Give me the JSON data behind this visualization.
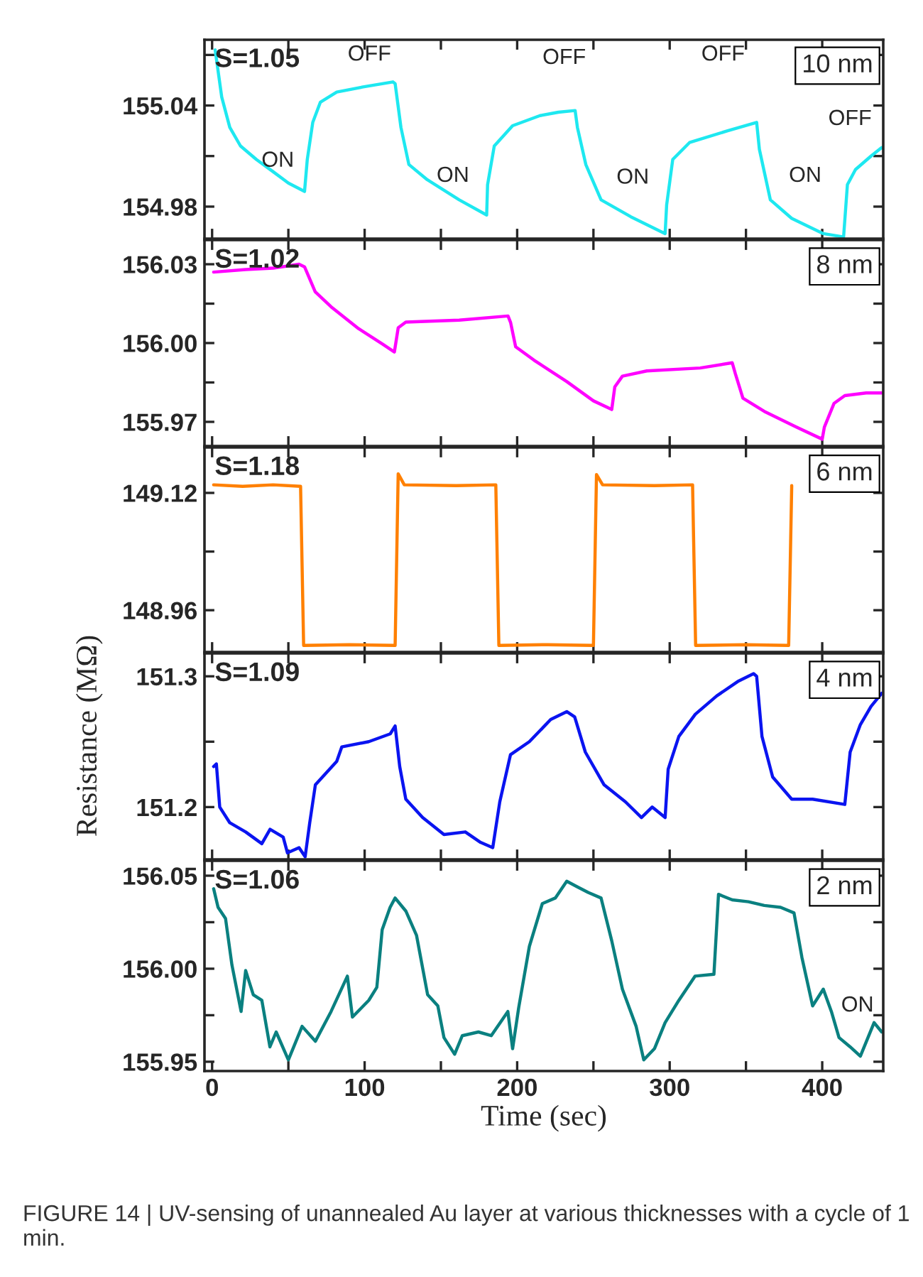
{
  "chart_data": [
    {
      "type": "line",
      "xlim": [
        -5,
        440
      ],
      "xticks": [
        0,
        {
          "value": 50,
          "label": null
        },
        {
          "value": 100,
          "label": null
        },
        {
          "value": 150,
          "label": null
        },
        {
          "value": 200,
          "label": null
        },
        {
          "value": 250,
          "label": null
        },
        {
          "value": 300,
          "label": null
        },
        {
          "value": 350,
          "label": null
        },
        {
          "value": 400,
          "label": null
        }
      ],
      "tick_labels": "y",
      "ylim": [
        154.961,
        155.079
      ],
      "yticks": [
        {
          "value": 154.98,
          "label": "154.98"
        },
        {
          "value": 155.01,
          "label": null
        },
        {
          "value": 155.04,
          "label": "155.04"
        },
        {
          "value": 155.07,
          "label": null
        }
      ],
      "series": [
        {
          "color": "#1ee8f0",
          "x": [
            2,
            6.3,
            11.6,
            18.6,
            29,
            39.6,
            50,
            60.6,
            62.4,
            66,
            71,
            81.7,
            99,
            118.5,
            120,
            123.8,
            129,
            141,
            162,
            180,
            180.6,
            185,
            197,
            215,
            227,
            238,
            239.5,
            245,
            255,
            274.5,
            297,
            298,
            302,
            313,
            338,
            357,
            358.8,
            366,
            380,
            400.7,
            414,
            416.5,
            421.8,
            432,
            439
          ],
          "values": [
            155.073,
            155.045,
            155.027,
            155.016,
            155.008,
            155.001,
            154.994,
            154.989,
            155.008,
            155.03,
            155.042,
            155.048,
            155.051,
            155.054,
            155.053,
            155.027,
            155.005,
            154.996,
            154.984,
            154.975,
            154.993,
            155.016,
            155.028,
            155.034,
            155.036,
            155.037,
            155.027,
            155.005,
            154.984,
            154.974,
            154.964,
            154.981,
            155.008,
            155.018,
            155.025,
            155.03,
            155.014,
            154.984,
            154.973,
            154.964,
            154.962,
            154.993,
            155.002,
            155.01,
            155.015
          ]
        }
      ],
      "annotations": [
        "S=1.05",
        "10 nm",
        "ON",
        "OFF",
        "ON",
        "OFF",
        "ON",
        "OFF",
        "ON",
        "OFF"
      ]
    },
    {
      "type": "line",
      "xlim": [
        -5,
        440
      ],
      "xticks": [
        0,
        {
          "value": 50,
          "label": null
        },
        {
          "value": 100,
          "label": null
        },
        {
          "value": 150,
          "label": null
        },
        {
          "value": 200,
          "label": null
        },
        {
          "value": 250,
          "label": null
        },
        {
          "value": 300,
          "label": null
        },
        {
          "value": 350,
          "label": null
        },
        {
          "value": 400,
          "label": null
        }
      ],
      "tick_labels": "y",
      "ylim": [
        155.9608,
        156.0392
      ],
      "yticks": [
        {
          "value": 155.97,
          "label": "155.97"
        },
        {
          "value": 155.985,
          "label": null
        },
        {
          "value": 156.0,
          "label": "156.00"
        },
        {
          "value": 156.015,
          "label": null
        },
        {
          "value": 156.03,
          "label": "156.03"
        }
      ],
      "series": [
        {
          "color": "#ff00ff",
          "x": [
            1,
            22,
            40,
            57,
            60.6,
            67.6,
            78,
            96,
            111.5,
            119.5,
            122,
            127,
            162,
            194,
            195.7,
            199,
            211,
            232.6,
            250,
            262,
            264,
            269,
            285,
            320,
            341,
            343,
            348,
            362,
            383,
            400,
            401.4,
            407.7,
            414.8,
            428.8,
            439
          ],
          "values": [
            156.027,
            156.028,
            156.0285,
            156.03,
            156.029,
            156.0195,
            156.0138,
            156.0055,
            155.9997,
            155.9966,
            156.0058,
            156.008,
            156.0087,
            156.0103,
            156.0078,
            155.9986,
            155.9935,
            155.9853,
            155.978,
            155.9747,
            155.9833,
            155.9874,
            155.9894,
            155.9905,
            155.9925,
            155.9884,
            155.979,
            155.974,
            155.968,
            155.9634,
            155.968,
            155.977,
            155.98,
            155.981,
            155.981
          ]
        }
      ],
      "annotations": [
        "S=1.02",
        "8 nm"
      ]
    },
    {
      "type": "line",
      "xlim": [
        -5,
        440
      ],
      "xticks": [
        0,
        {
          "value": 50,
          "label": null
        },
        {
          "value": 100,
          "label": null
        },
        {
          "value": 150,
          "label": null
        },
        {
          "value": 200,
          "label": null
        },
        {
          "value": 250,
          "label": null
        },
        {
          "value": 300,
          "label": null
        },
        {
          "value": 350,
          "label": null
        },
        {
          "value": 400,
          "label": null
        }
      ],
      "tick_labels": "y",
      "ylim": [
        148.903,
        149.182
      ],
      "yticks": [
        {
          "value": 148.96,
          "label": "148.96"
        },
        {
          "value": 149.04,
          "label": null
        },
        {
          "value": 149.12,
          "label": "149.12"
        }
      ],
      "series": [
        {
          "color": "#ff8000",
          "x": [
            1,
            20,
            40,
            58,
            60,
            90,
            120,
            122,
            126,
            160,
            186,
            188,
            220,
            250,
            252,
            256,
            290,
            315,
            317,
            350,
            378,
            380
          ],
          "values": [
            149.131,
            149.129,
            149.131,
            149.129,
            148.912,
            148.913,
            148.912,
            149.146,
            149.131,
            149.13,
            149.131,
            148.912,
            148.913,
            148.912,
            149.145,
            149.131,
            149.13,
            149.131,
            148.912,
            148.913,
            148.912,
            149.13
          ]
        }
      ],
      "annotations": [
        "S=1.18",
        "6 nm"
      ]
    },
    {
      "type": "line",
      "xlim": [
        -5,
        440
      ],
      "xticks": [
        0,
        {
          "value": 50,
          "label": null
        },
        {
          "value": 100,
          "label": null
        },
        {
          "value": 150,
          "label": null
        },
        {
          "value": 200,
          "label": null
        },
        {
          "value": 250,
          "label": null
        },
        {
          "value": 300,
          "label": null
        },
        {
          "value": 350,
          "label": null
        },
        {
          "value": 400,
          "label": null
        }
      ],
      "tick_labels": "y",
      "ylim": [
        151.16,
        151.3175
      ],
      "yticks": [
        {
          "value": 151.2,
          "label": "151.2"
        },
        {
          "value": 151.25,
          "label": null
        },
        {
          "value": 151.3,
          "label": "151.3"
        }
      ],
      "ylabel": "Resistance (MΩ)",
      "series": [
        {
          "color": "#0a14f0",
          "x": [
            1,
            2.8,
            5,
            11.6,
            22,
            32.6,
            38,
            46.6,
            49.4,
            57,
            61,
            64,
            67.7,
            81.7,
            85,
            102.7,
            116.8,
            120,
            123,
            127,
            138,
            152,
            166,
            176,
            184,
            188.6,
            195.6,
            208,
            222,
            232.5,
            237.7,
            244.7,
            257,
            271,
            281.5,
            288.5,
            297,
            299,
            306,
            316.8,
            330.8,
            344.6,
            355,
            357,
            360.5,
            367.5,
            380,
            393.7,
            414.8,
            418.3,
            425,
            432,
            439
          ],
          "values": [
            151.231,
            151.233,
            151.2,
            151.188,
            151.181,
            151.172,
            151.183,
            151.177,
            151.165,
            151.169,
            151.162,
            151.188,
            151.217,
            151.235,
            151.246,
            151.25,
            151.256,
            151.262,
            151.231,
            151.206,
            151.192,
            151.179,
            151.181,
            151.173,
            151.169,
            151.204,
            151.24,
            151.25,
            151.267,
            151.273,
            151.269,
            151.242,
            151.217,
            151.204,
            151.192,
            151.2,
            151.192,
            151.229,
            151.254,
            151.271,
            151.285,
            151.296,
            151.302,
            151.3,
            151.254,
            151.223,
            151.206,
            151.206,
            151.202,
            151.242,
            151.263,
            151.277,
            151.287
          ]
        }
      ],
      "annotations": [
        "S=1.09",
        "4 nm"
      ]
    },
    {
      "type": "line",
      "xlim": [
        -5,
        440
      ],
      "xticks": [
        0,
        {
          "value": 50,
          "label": null
        },
        100,
        {
          "value": 150,
          "label": null
        },
        200,
        {
          "value": 250,
          "label": null
        },
        300,
        {
          "value": 350,
          "label": null
        },
        400
      ],
      "ylim": [
        155.945,
        156.058
      ],
      "yticks": [
        {
          "value": 155.95,
          "label": "155.95"
        },
        {
          "value": 155.975,
          "label": null
        },
        {
          "value": 156.0,
          "label": "156.00"
        },
        {
          "value": 156.025,
          "label": null
        },
        {
          "value": 156.05,
          "label": "156.05"
        }
      ],
      "xlabel": "Time (sec)",
      "series": [
        {
          "color": "#0a8080",
          "x": [
            1,
            3.9,
            8.8,
            13,
            19,
            22,
            27,
            32.6,
            37.9,
            42,
            50,
            59,
            67.7,
            78,
            88.7,
            92,
            102.7,
            108,
            111.5,
            116.7,
            120,
            127,
            134,
            141.3,
            148,
            152,
            159,
            164,
            174.6,
            183,
            193.9,
            197,
            201,
            208,
            216.5,
            225,
            232.5,
            239.5,
            246.5,
            255,
            262,
            269,
            278,
            283,
            290,
            297,
            306,
            316.6,
            329,
            332,
            341,
            351.6,
            362,
            372.7,
            381.5,
            386.7,
            393.7,
            400.7,
            406,
            411,
            418.3,
            425,
            434,
            439
          ],
          "values": [
            156.043,
            156.033,
            156.027,
            156.002,
            155.977,
            155.999,
            155.986,
            155.983,
            155.958,
            155.966,
            155.951,
            155.969,
            155.961,
            155.977,
            155.996,
            155.974,
            155.983,
            155.99,
            156.021,
            156.033,
            156.038,
            156.031,
            156.018,
            155.986,
            155.98,
            155.963,
            155.954,
            155.964,
            155.966,
            155.964,
            155.977,
            155.957,
            155.979,
            156.012,
            156.035,
            156.038,
            156.047,
            156.044,
            156.041,
            156.038,
            156.015,
            155.989,
            155.969,
            155.951,
            155.957,
            155.971,
            155.983,
            155.996,
            155.997,
            156.04,
            156.037,
            156.036,
            156.034,
            156.033,
            156.03,
            156.006,
            155.98,
            155.989,
            155.977,
            155.963,
            155.958,
            155.953,
            155.971,
            155.966
          ]
        }
      ],
      "annotations": [
        "S=1.06",
        "2 nm",
        "FIGURE 14 | UV-sensing of unannealed Au layer at various thicknesses with a cycle of 1 min.",
        "ON"
      ]
    }
  ]
}
